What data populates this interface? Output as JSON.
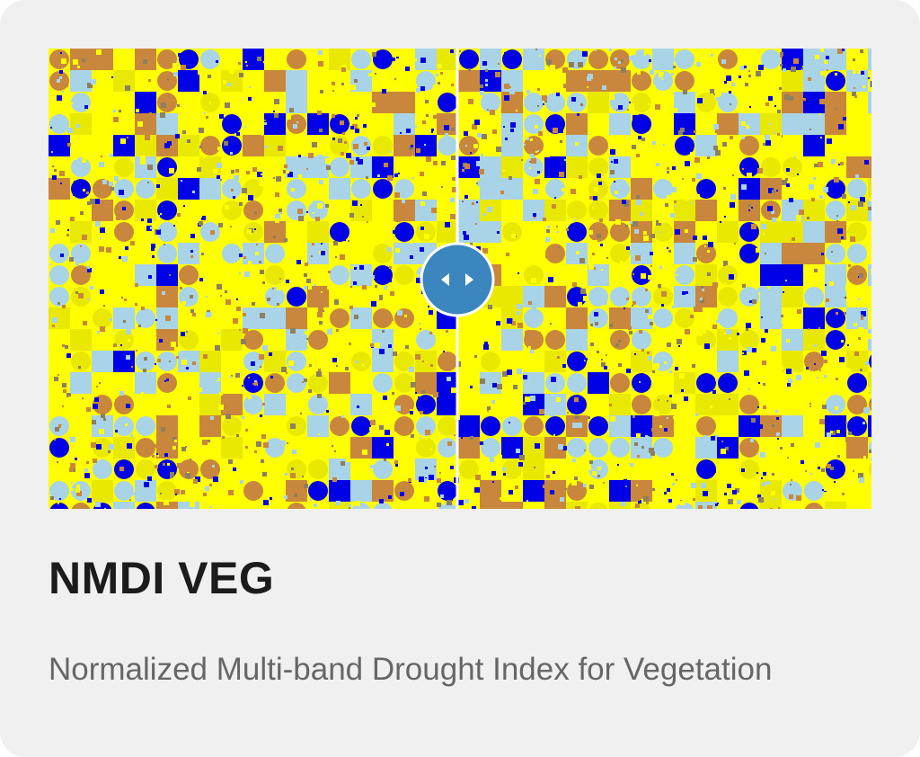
{
  "card": {
    "title": "NMDI VEG",
    "description": "Normalized Multi-band Drought Index for Vegetation"
  }
}
